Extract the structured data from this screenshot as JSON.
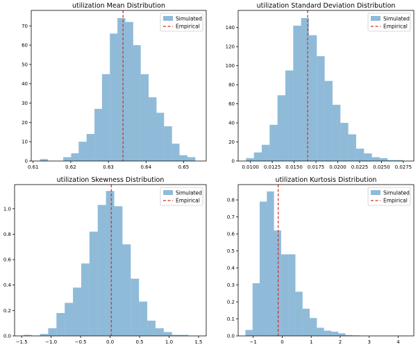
{
  "chart_data": [
    {
      "type": "histogram",
      "title": "utilization Mean Distribution",
      "xlim": [
        0.6095,
        0.656
      ],
      "ylim": [
        0,
        78
      ],
      "xticks": [
        0.61,
        0.62,
        0.63,
        0.64,
        0.65
      ],
      "xtick_labels": [
        "0.61",
        "0.62",
        "0.63",
        "0.64",
        "0.65"
      ],
      "yticks": [
        0,
        10,
        20,
        30,
        40,
        50,
        60,
        70
      ],
      "bin_edges": [
        0.6118,
        0.6139,
        0.616,
        0.618,
        0.6201,
        0.6221,
        0.6242,
        0.6263,
        0.6283,
        0.6304,
        0.6324,
        0.6345,
        0.6366,
        0.6386,
        0.6407,
        0.6428,
        0.6448,
        0.6469,
        0.6489,
        0.651,
        0.6531
      ],
      "counts": [
        1,
        0,
        0,
        2,
        4,
        10,
        14,
        27,
        45,
        66,
        74,
        72,
        60,
        45,
        33,
        25,
        18,
        9,
        3,
        2
      ],
      "empirical": 0.6339,
      "legend": [
        "Simulated",
        "Empirical"
      ]
    },
    {
      "type": "histogram",
      "title": "utilization Standard Deviation Distribution",
      "xlim": [
        0.0086,
        0.0287
      ],
      "ylim": [
        0,
        158
      ],
      "xticks": [
        0.01,
        0.0125,
        0.015,
        0.0175,
        0.02,
        0.0225,
        0.025,
        0.0275
      ],
      "xtick_labels": [
        "0.0100",
        "0.0125",
        "0.0150",
        "0.0175",
        "0.0200",
        "0.0225",
        "0.0250",
        "0.0275"
      ],
      "yticks": [
        0,
        20,
        40,
        60,
        80,
        100,
        120,
        140
      ],
      "bin_edges": [
        0.0095,
        0.0104,
        0.0113,
        0.0122,
        0.0131,
        0.014,
        0.0149,
        0.0158,
        0.0167,
        0.0176,
        0.0185,
        0.0194,
        0.0203,
        0.0212,
        0.0221,
        0.023,
        0.0239,
        0.0248,
        0.0257,
        0.0266,
        0.0275
      ],
      "counts": [
        3,
        9,
        17,
        38,
        69,
        95,
        142,
        150,
        132,
        110,
        84,
        59,
        40,
        28,
        13,
        8,
        4,
        3,
        1,
        1
      ],
      "empirical": 0.01655,
      "legend": [
        "Simulated",
        "Empirical"
      ]
    },
    {
      "type": "histogram",
      "title": "utilization Skewness Distribution",
      "xlim": [
        -1.62,
        1.63
      ],
      "ylim": [
        0,
        1.19
      ],
      "xticks": [
        -1.5,
        -1.0,
        -0.5,
        0.0,
        0.5,
        1.0,
        1.5
      ],
      "xtick_labels": [
        "−1.5",
        "−1.0",
        "−0.5",
        "0.0",
        "0.5",
        "1.0",
        "1.5"
      ],
      "yticks": [
        0.0,
        0.2,
        0.4,
        0.6,
        0.8,
        1.0
      ],
      "ytick_labels": [
        "0.0",
        "0.2",
        "0.4",
        "0.6",
        "0.8",
        "1.0"
      ],
      "bin_edges": [
        -1.47,
        -1.33,
        -1.19,
        -1.05,
        -0.91,
        -0.77,
        -0.63,
        -0.49,
        -0.35,
        -0.21,
        -0.07,
        0.07,
        0.21,
        0.35,
        0.49,
        0.63,
        0.77,
        0.91,
        1.05,
        1.19,
        1.33
      ],
      "counts": [
        0.008,
        0.0,
        0.015,
        0.06,
        0.18,
        0.26,
        0.38,
        0.57,
        0.82,
        1.03,
        1.14,
        1.02,
        0.72,
        0.45,
        0.27,
        0.12,
        0.06,
        0.03,
        0.008,
        0.008
      ],
      "empirical": 0.02,
      "legend": [
        "Simulated",
        "Empirical"
      ]
    },
    {
      "type": "histogram",
      "title": "utilization Kurtosis Distribution",
      "xlim": [
        -1.52,
        4.54
      ],
      "ylim": [
        0,
        0.89
      ],
      "xticks": [
        -1,
        0,
        1,
        2,
        3,
        4
      ],
      "xtick_labels": [
        "−1",
        "0",
        "1",
        "2",
        "3",
        "4"
      ],
      "yticks": [
        0.0,
        0.1,
        0.2,
        0.3,
        0.4,
        0.5,
        0.6,
        0.7,
        0.8
      ],
      "ytick_labels": [
        "0.0",
        "0.1",
        "0.2",
        "0.3",
        "0.4",
        "0.5",
        "0.6",
        "0.7",
        "0.8"
      ],
      "bin_edges": [
        -1.27,
        -1.0235,
        -0.777,
        -0.5305,
        -0.284,
        -0.0375,
        0.209,
        0.4555,
        0.702,
        0.9485,
        1.195,
        1.4415,
        1.688,
        1.9345,
        2.181,
        2.4275,
        2.674,
        2.9205,
        3.167,
        3.4135,
        3.66,
        3.9065,
        4.153
      ],
      "counts": [
        0.035,
        0.31,
        0.79,
        0.85,
        0.62,
        0.48,
        0.48,
        0.26,
        0.16,
        0.105,
        0.048,
        0.031,
        0.025,
        0.015,
        0.005,
        0.003,
        0.002,
        0.0,
        0.0,
        0.0,
        0.001,
        0.002
      ],
      "empirical": -0.14,
      "legend": [
        "Simulated",
        "Empirical"
      ]
    }
  ],
  "colors": {
    "bar": "#1f77b4",
    "empirical": "#d62728"
  }
}
